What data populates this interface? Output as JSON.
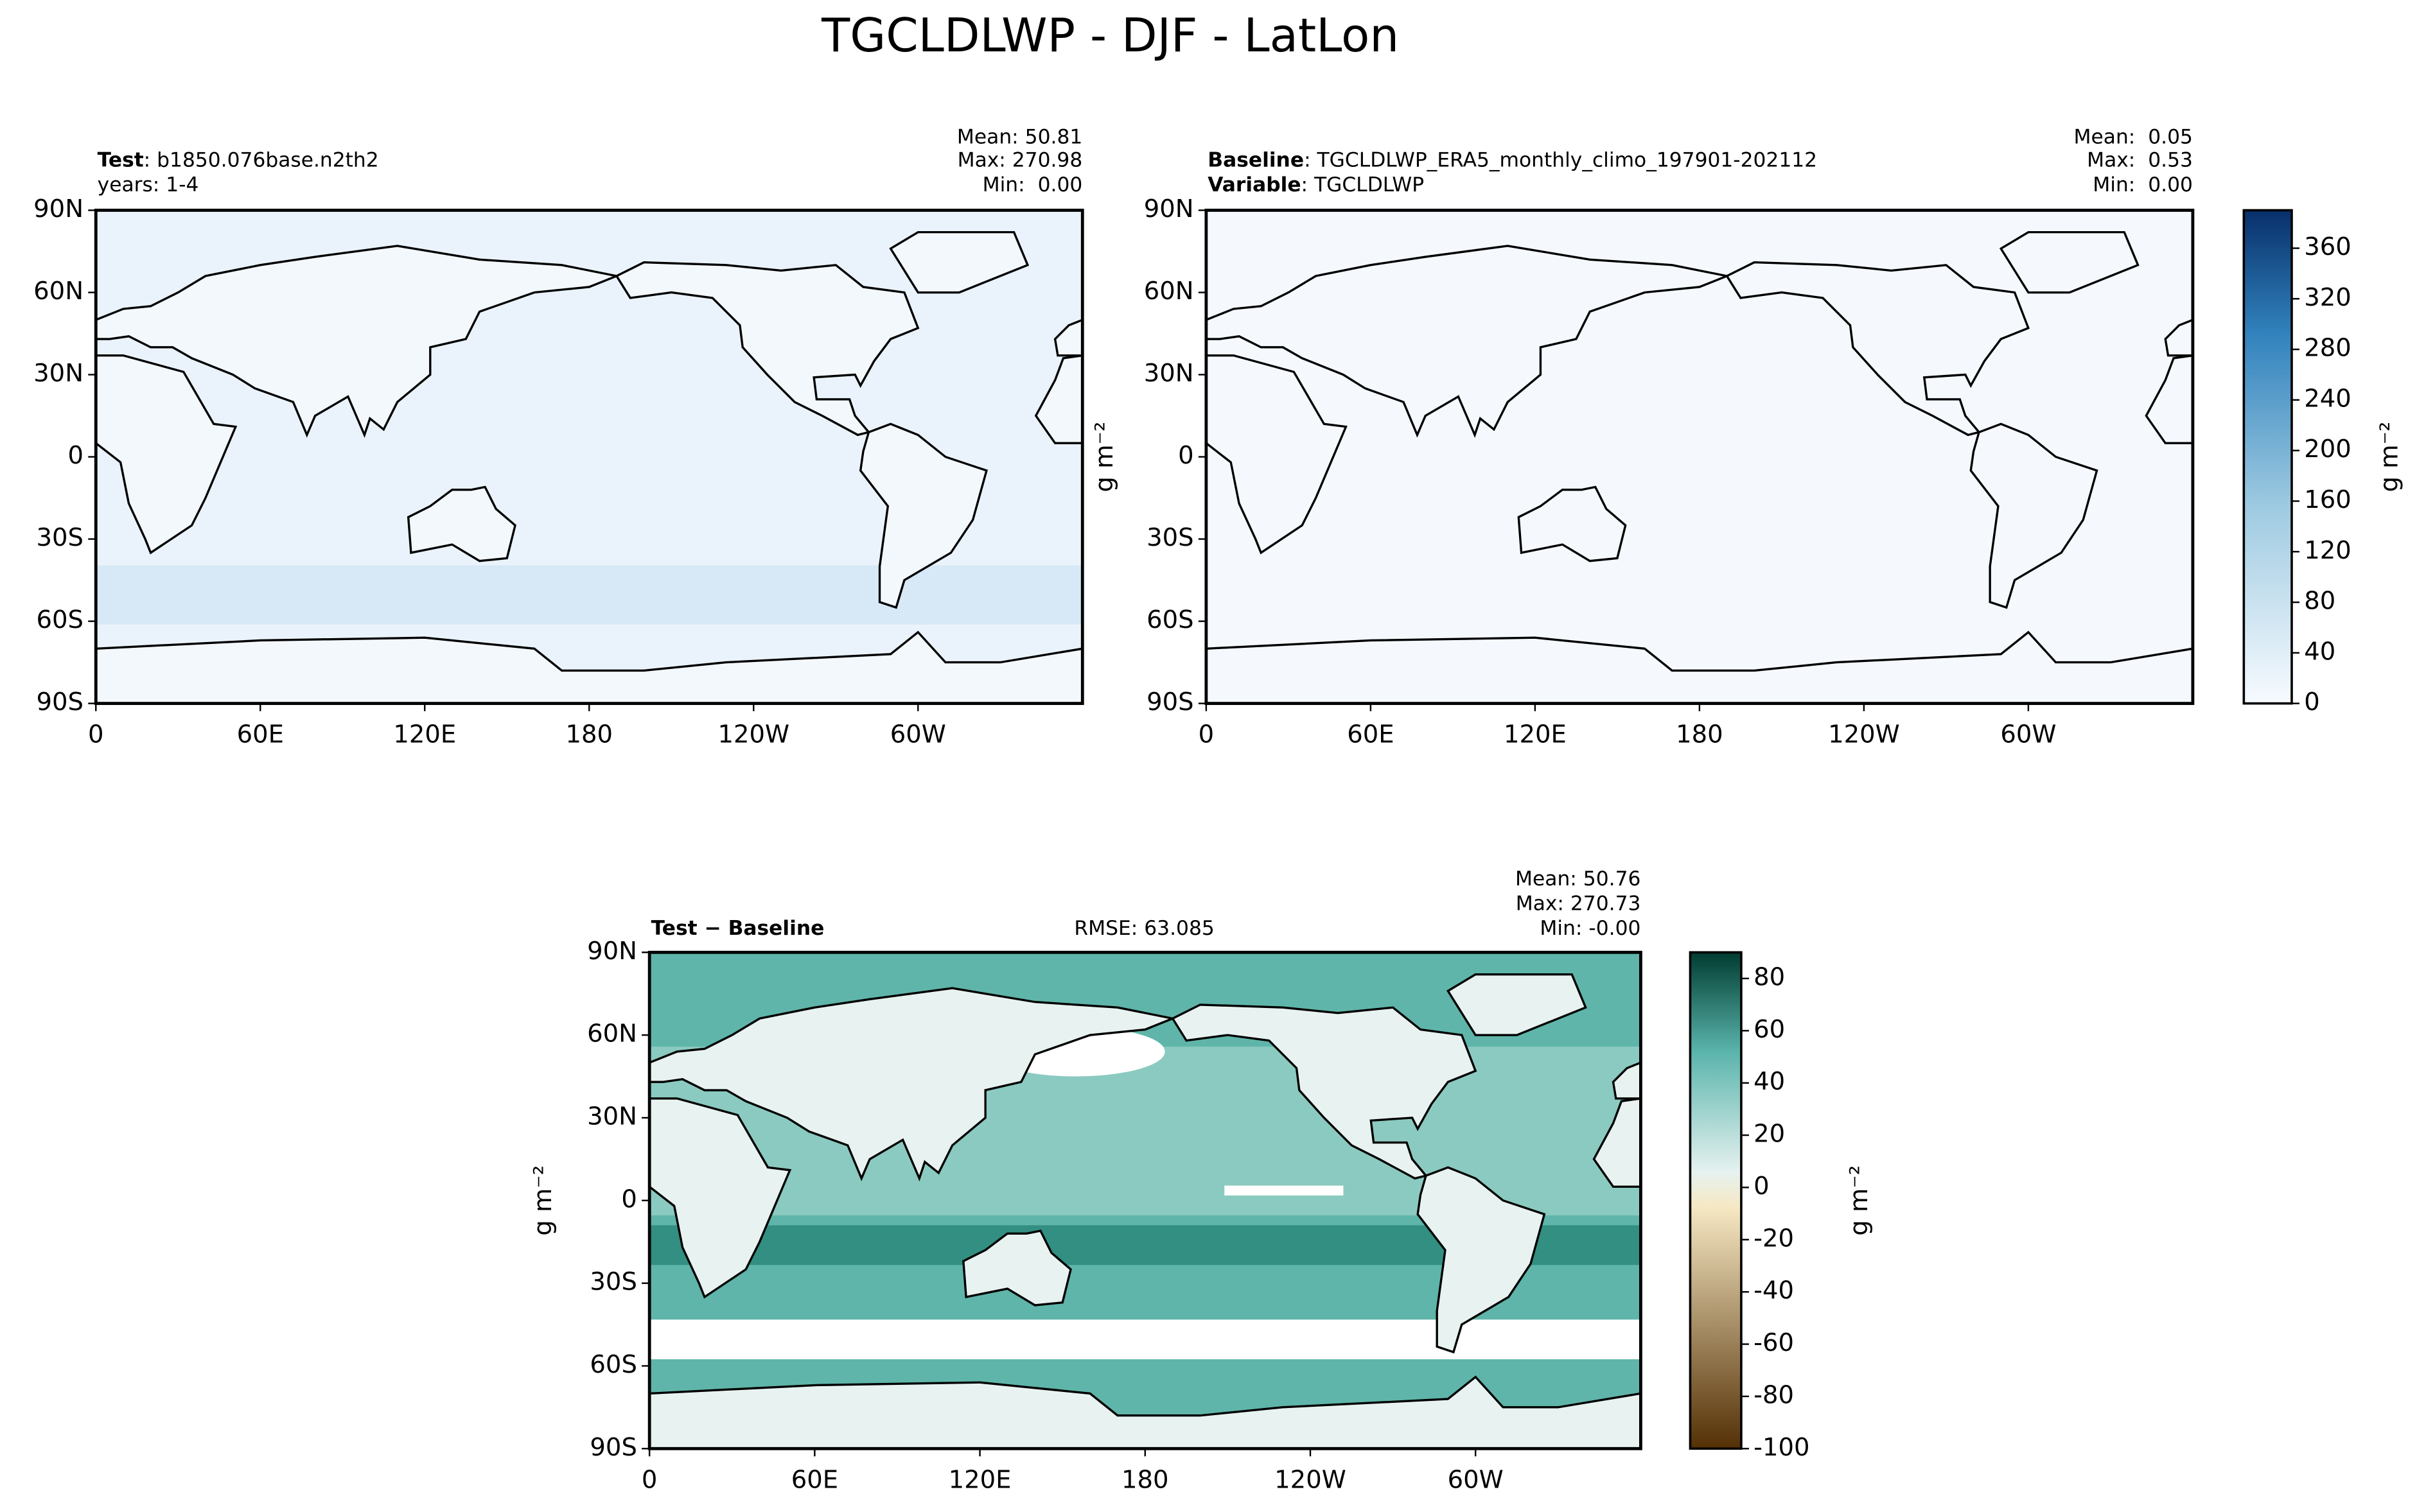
{
  "title": "TGCLDLWP - DJF - LatLon",
  "map_axes": {
    "xlim": [
      0,
      360
    ],
    "ylim": [
      -90,
      90
    ],
    "xticks": [
      0,
      {
        "value": 60,
        "label": "60E"
      },
      {
        "value": 120,
        "label": "120E"
      },
      180,
      {
        "value": 240,
        "label": "120W"
      },
      {
        "value": 300,
        "label": "60W"
      }
    ],
    "yticks": [
      {
        "value": 90,
        "label": "90N"
      },
      {
        "value": 60,
        "label": "60N"
      },
      {
        "value": 30,
        "label": "30N"
      },
      0,
      {
        "value": -30,
        "label": "30S"
      },
      {
        "value": -60,
        "label": "60S"
      },
      {
        "value": -90,
        "label": "90S"
      }
    ]
  },
  "panels": [
    {
      "lines": [
        {
          "key": "Test",
          "text": ": b1850.076base.n2th2"
        },
        {
          "text": "years: 1-4"
        }
      ],
      "stats": [
        "Mean: 50.81",
        "Max: 270.98",
        "Min:  0.00"
      ]
    },
    {
      "lines": [
        {
          "key": "Baseline",
          "text": ": TGCLDLWP_ERA5_monthly_climo_197901-202112"
        },
        {
          "key": "Variable",
          "text": ": TGCLDLWP"
        }
      ],
      "stats": [
        "Mean:  0.05",
        "Max:  0.53",
        "Min:  0.00"
      ],
      "ylabel": "g m⁻²"
    },
    {
      "lines": [
        {
          "key": "Test − Baseline"
        }
      ],
      "center": "RMSE: 63.085",
      "stats": [
        "Mean: 50.76",
        "Max: 270.73",
        "Min: -0.00"
      ],
      "ylabel": "g m⁻²"
    }
  ],
  "colorbars": [
    {
      "lim": [
        0,
        390
      ],
      "ticks": [
        0,
        40,
        80,
        120,
        160,
        200,
        240,
        280,
        320,
        360
      ],
      "label": "g m⁻²"
    },
    {
      "lim": [
        -100,
        90
      ],
      "ticks": [
        -100,
        -80,
        -60,
        -40,
        -20,
        0,
        20,
        40,
        60,
        80
      ],
      "label": "g m⁻²"
    }
  ]
}
